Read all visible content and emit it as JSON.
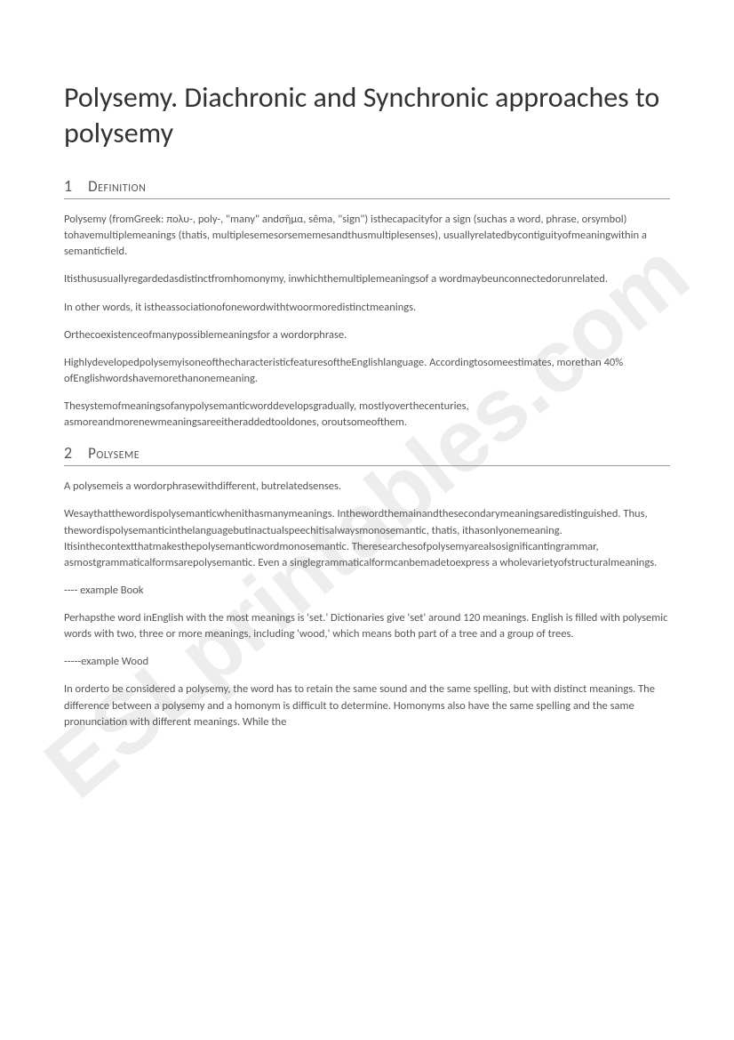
{
  "document": {
    "title": "Polysemy. Diachronic and Synchronic approaches to polysemy",
    "watermark": "ESLprintables.com",
    "sections": [
      {
        "number": "1",
        "title": "Definition",
        "paragraphs": [
          "Polysemy (fromGreek: πολυ-, poly-, \"many\" andσῆμα, sêma, \"sign\") isthecapacityfor a sign (suchas a word, phrase, orsymbol) tohavemultiplemeanings (thatis, multiplesemesorsememesandthusmultiplesenses), usuallyrelatedbycontiguityofmeaningwithin a semanticfield.",
          "Itisthususuallyregardedasdistinctfromhomonymy, inwhichthemultiplemeaningsof a wordmaybeunconnectedorunrelated.",
          "In other words, it istheassociationofonewordwithtwoormoredistinctmeanings.",
          "Orthecoexistenceofmanypossiblemeaningsfor a wordorphrase.",
          "HighlydevelopedpolysemyisoneofthecharacteristicfeaturesoftheEnglishlanguage. Accordingtosomeestimates, morethan 40% ofEnglishwordshavemorethanonemeaning.",
          "Thesystemofmeaningsofanypolysemanticworddevelopsgradually, mostlyoverthecenturies, asmoreandmorenewmeaningsareeitheraddedtooldones, oroutsomeofthem."
        ]
      },
      {
        "number": "2",
        "title": "Polyseme",
        "paragraphs": [
          "A polysemeis a wordorphrasewithdifferent, butrelatedsenses.",
          "Wesaythatthewordispolysemanticwhenithasmanymeanings. Inthewordthemainandthesecondarymeaningsaredistinguished. Thus, thewordispolysemanticinthelanguagebutinactualspeechitisalwaysmonosemantic, thatis, ithasonlyonemeaning. Itisinthecontextthatmakesthepolysemanticwordmonosemantic. Theresearchesofpolysemyarealsosignificantingrammar, asmostgrammaticalformsarepolysemantic. Even a singlegrammaticalformcanbemadetoexpress a wholevarietyofstructuralmeanings.",
          "---- example Book",
          "Perhapsthe word inEnglish with the most meanings is 'set.' Dictionaries give 'set' around 120 meanings. English is filled with polysemic words with two, three or more meanings, including 'wood,' which means both part of a tree and a group of trees.",
          "-----example Wood",
          "In orderto be considered a polysemy, the word has to retain the same sound and the same spelling, but with distinct meanings. The difference between a polysemy and a homonym is difficult to determine. Homonyms also have the same spelling and the same pronunciation with different meanings. While the"
        ]
      }
    ]
  }
}
